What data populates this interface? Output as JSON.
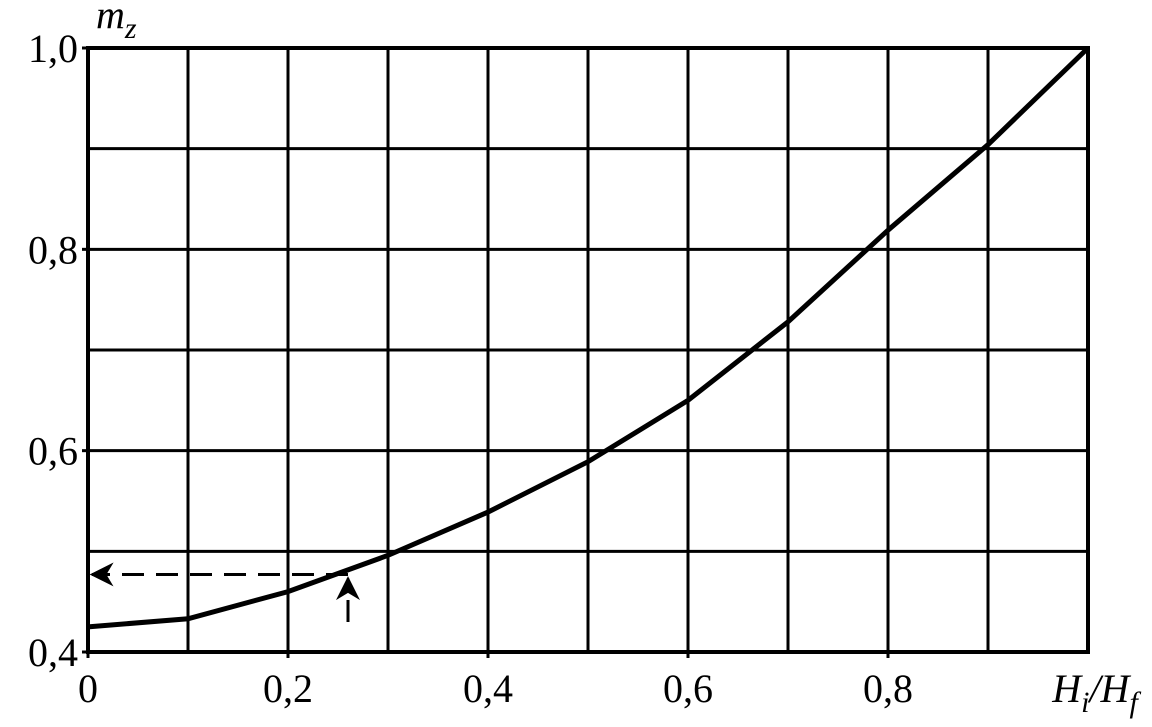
{
  "chart_data": {
    "type": "line",
    "x": [
      0,
      0.1,
      0.2,
      0.3,
      0.4,
      0.5,
      0.6,
      0.7,
      0.8,
      0.9,
      1.0
    ],
    "values": [
      0.425,
      0.433,
      0.46,
      0.496,
      0.539,
      0.589,
      0.65,
      0.728,
      0.819,
      0.904,
      1.0
    ],
    "color": "#000000",
    "xlim": [
      0,
      1.0
    ],
    "ylim": [
      0.4,
      1.0
    ],
    "xticks": [
      0,
      {
        "value": 0.2,
        "label": "0,2"
      },
      {
        "value": 0.4,
        "label": "0,4"
      },
      {
        "value": 0.6,
        "label": "0,6"
      },
      {
        "value": 0.8,
        "label": "0,8"
      }
    ],
    "yticks": [
      {
        "value": 0.4,
        "label": "0,4"
      },
      {
        "value": 0.6,
        "label": "0,6"
      },
      {
        "value": 0.8,
        "label": "0,8"
      },
      {
        "value": 1.0,
        "label": "1,0"
      }
    ],
    "xgrid": [
      0.1,
      0.2,
      0.3,
      0.4,
      0.5,
      0.6,
      0.7,
      0.8,
      0.9
    ],
    "ygrid": [
      0.5,
      0.6,
      0.7,
      0.8,
      0.9
    ],
    "grid": true,
    "reading": {
      "x": 0.26,
      "y": 0.477
    },
    "xlabel": [
      {
        "text": "H"
      },
      {
        "text": "i",
        "sub": true
      },
      {
        "text": "/H"
      },
      {
        "text": "f",
        "sub": true
      }
    ],
    "ylabel": [
      {
        "text": "m"
      },
      {
        "text": "z",
        "sub": true
      }
    ]
  }
}
